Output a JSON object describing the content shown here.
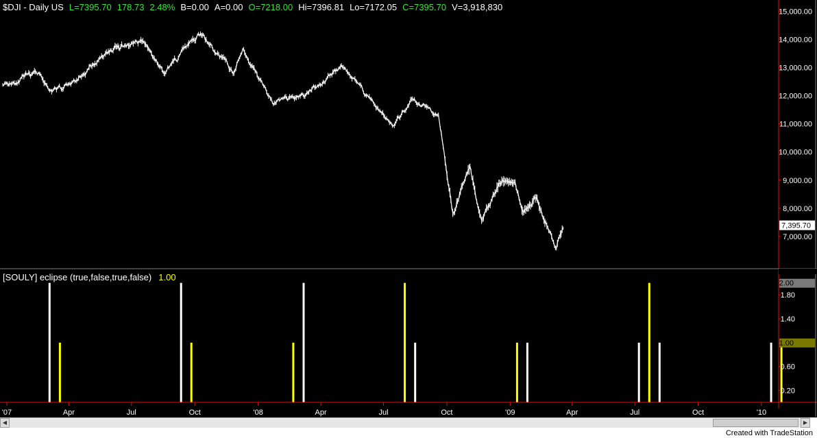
{
  "header": {
    "symbol": "$DJI - Daily  US",
    "last": "L=7395.70",
    "change": "178.73",
    "change_pct": "2.48%",
    "bid": "B=0.00",
    "ask": "A=0.00",
    "open": "O=7218.00",
    "high": "Hi=7396.81",
    "low": "Lo=7172.05",
    "close": "C=7395.70",
    "volume": "V=3,918,830"
  },
  "indicator": {
    "name": "[SOULY] eclipse (true,false,true,false)",
    "value": "1.00"
  },
  "last_price_label": "7,395.70",
  "credit": "Created with TradeStation",
  "colors": {
    "background": "#000000",
    "price": "#ffffff",
    "axis_red": "#e01010",
    "eclipse_white": "#ffffff",
    "eclipse_yellow": "#ffff00",
    "up_change": "#32e632"
  },
  "chart_data": [
    {
      "type": "line",
      "title": "$DJI - Daily",
      "xlabel": "",
      "ylabel": "",
      "ylim": [
        6000,
        15300
      ],
      "y_ticks": [
        "15,000.00",
        "14,000.00",
        "13,000.00",
        "12,000.00",
        "11,000.00",
        "10,000.00",
        "9,000.00",
        "8,000.00",
        "7,000.00"
      ],
      "x_ticks": [
        "'07",
        "Apr",
        "Jul",
        "Oct",
        "'08",
        "Apr",
        "Jul",
        "Oct",
        "'09",
        "Apr",
        "Jul",
        "Oct",
        "'10"
      ],
      "x": [
        "2007-01-01",
        "2007-02-20",
        "2007-03-05",
        "2007-04-15",
        "2007-06-01",
        "2007-07-16",
        "2007-08-16",
        "2007-10-09",
        "2007-11-26",
        "2007-12-10",
        "2008-01-22",
        "2008-03-10",
        "2008-05-02",
        "2008-07-15",
        "2008-08-11",
        "2008-09-19",
        "2008-10-10",
        "2008-11-04",
        "2008-11-20",
        "2008-12-15",
        "2009-01-06",
        "2009-01-20",
        "2009-02-09",
        "2009-03-09",
        "2009-03-20"
      ],
      "series": [
        {
          "values": [
            12460,
            12780,
            12050,
            12600,
            13600,
            14000,
            12850,
            14160,
            12800,
            13700,
            11700,
            12000,
            13100,
            10900,
            11800,
            11400,
            7900,
            9600,
            7500,
            8900,
            9100,
            8000,
            8300,
            6550,
            7396
          ]
        }
      ]
    },
    {
      "type": "bar",
      "title": "[SOULY] eclipse (true,false,true,false)",
      "xlabel": "",
      "ylabel": "",
      "ylim": [
        0,
        2.1
      ],
      "y_ticks": [
        "0.20",
        "0.60",
        "1.00",
        "1.40",
        "1.80",
        "2.00"
      ],
      "series": [
        {
          "name": "white",
          "x": [
            "2007-03-04",
            "2007-09-11",
            "2008-03-07",
            "2008-08-16",
            "2009-01-26",
            "2009-07-07",
            "2009-08-06",
            "2010-01-15"
          ],
          "values": [
            2,
            2,
            2,
            1,
            1,
            1,
            1,
            1
          ]
        },
        {
          "name": "yellow",
          "x": [
            "2007-03-19",
            "2007-09-26",
            "2008-02-21",
            "2008-08-01",
            "2009-01-11",
            "2009-07-22",
            "2010-01-30"
          ],
          "values": [
            1,
            1,
            1,
            2,
            1,
            2,
            1
          ]
        }
      ]
    }
  ]
}
